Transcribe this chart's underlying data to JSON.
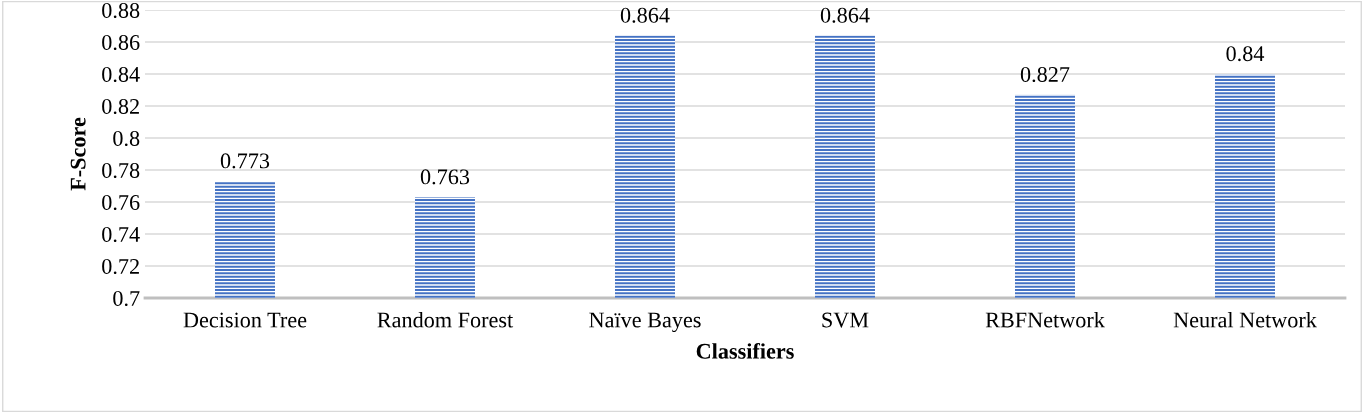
{
  "chart_data": {
    "type": "bar",
    "xlabel": "Classifiers",
    "ylabel": "F-Score",
    "categories": [
      "Decision Tree",
      "Random Forest",
      "Naïve Bayes",
      "SVM",
      "RBFNetwork",
      "Neural Network"
    ],
    "values": [
      0.773,
      0.763,
      0.864,
      0.864,
      0.827,
      0.84
    ],
    "color": "#4472c4",
    "ylim": [
      0.7,
      0.88
    ],
    "yticks": [
      0.7,
      0.72,
      0.74,
      0.76,
      0.78,
      0.8,
      0.82,
      0.84,
      0.86,
      0.88
    ],
    "grid": "y",
    "data_labels": true
  }
}
